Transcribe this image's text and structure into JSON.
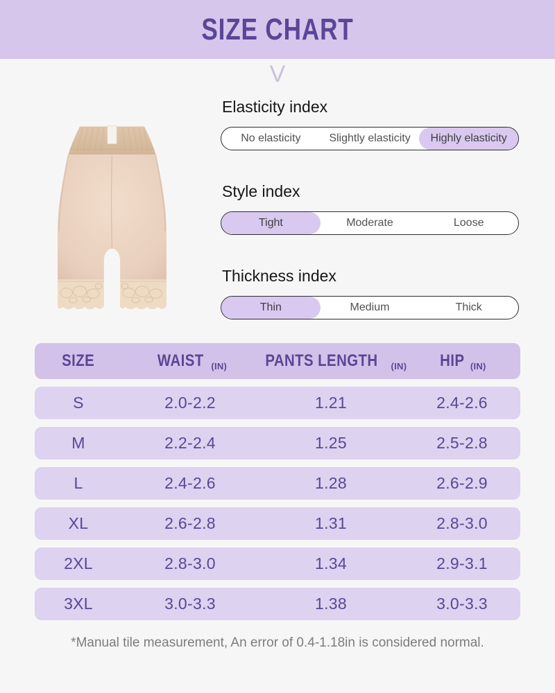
{
  "page": {
    "title": "SIZE CHART",
    "footnote": "*Manual tile measurement, An error of 0.4-1.18in is considered normal."
  },
  "icons": {
    "chevron_down": "V"
  },
  "product": {
    "description": "nude high-waist shapewear shorts with lace hem"
  },
  "indexes": [
    {
      "label": "Elasticity index",
      "options": [
        "No elasticity",
        "Slightly elasticity",
        "Highly elasticity"
      ],
      "selected": 2
    },
    {
      "label": "Style index",
      "options": [
        "Tight",
        "Moderate",
        "Loose"
      ],
      "selected": 0
    },
    {
      "label": "Thickness index",
      "options": [
        "Thin",
        "Medium",
        "Thick"
      ],
      "selected": 0
    }
  ],
  "table": {
    "columns": [
      {
        "label": "SIZE",
        "unit": ""
      },
      {
        "label": "WAIST",
        "unit": "(IN)"
      },
      {
        "label": "PANTS LENGTH",
        "unit": "(IN)"
      },
      {
        "label": "HIP",
        "unit": "(IN)"
      }
    ],
    "rows": [
      [
        "S",
        "2.0-2.2",
        "1.21",
        "2.4-2.6"
      ],
      [
        "M",
        "2.2-2.4",
        "1.25",
        "2.5-2.8"
      ],
      [
        "L",
        "2.4-2.6",
        "1.28",
        "2.6-2.9"
      ],
      [
        "XL",
        "2.6-2.8",
        "1.31",
        "2.8-3.0"
      ],
      [
        "2XL",
        "2.8-3.0",
        "1.34",
        "2.9-3.1"
      ],
      [
        "3XL",
        "3.0-3.3",
        "1.38",
        "3.0-3.3"
      ]
    ]
  },
  "colors": {
    "banner_bg": "#d6c6ec",
    "accent_purple": "#5a4697",
    "highlight_bg": "#d9c8ef",
    "table_header_bg": "#d2c2e9",
    "row_bg": "#ddd2ef",
    "page_bg": "#f7f6f7",
    "shorts_body": "#ead2c0",
    "shorts_waistband": "#d9bda2",
    "shorts_lace": "#eedbc4"
  }
}
